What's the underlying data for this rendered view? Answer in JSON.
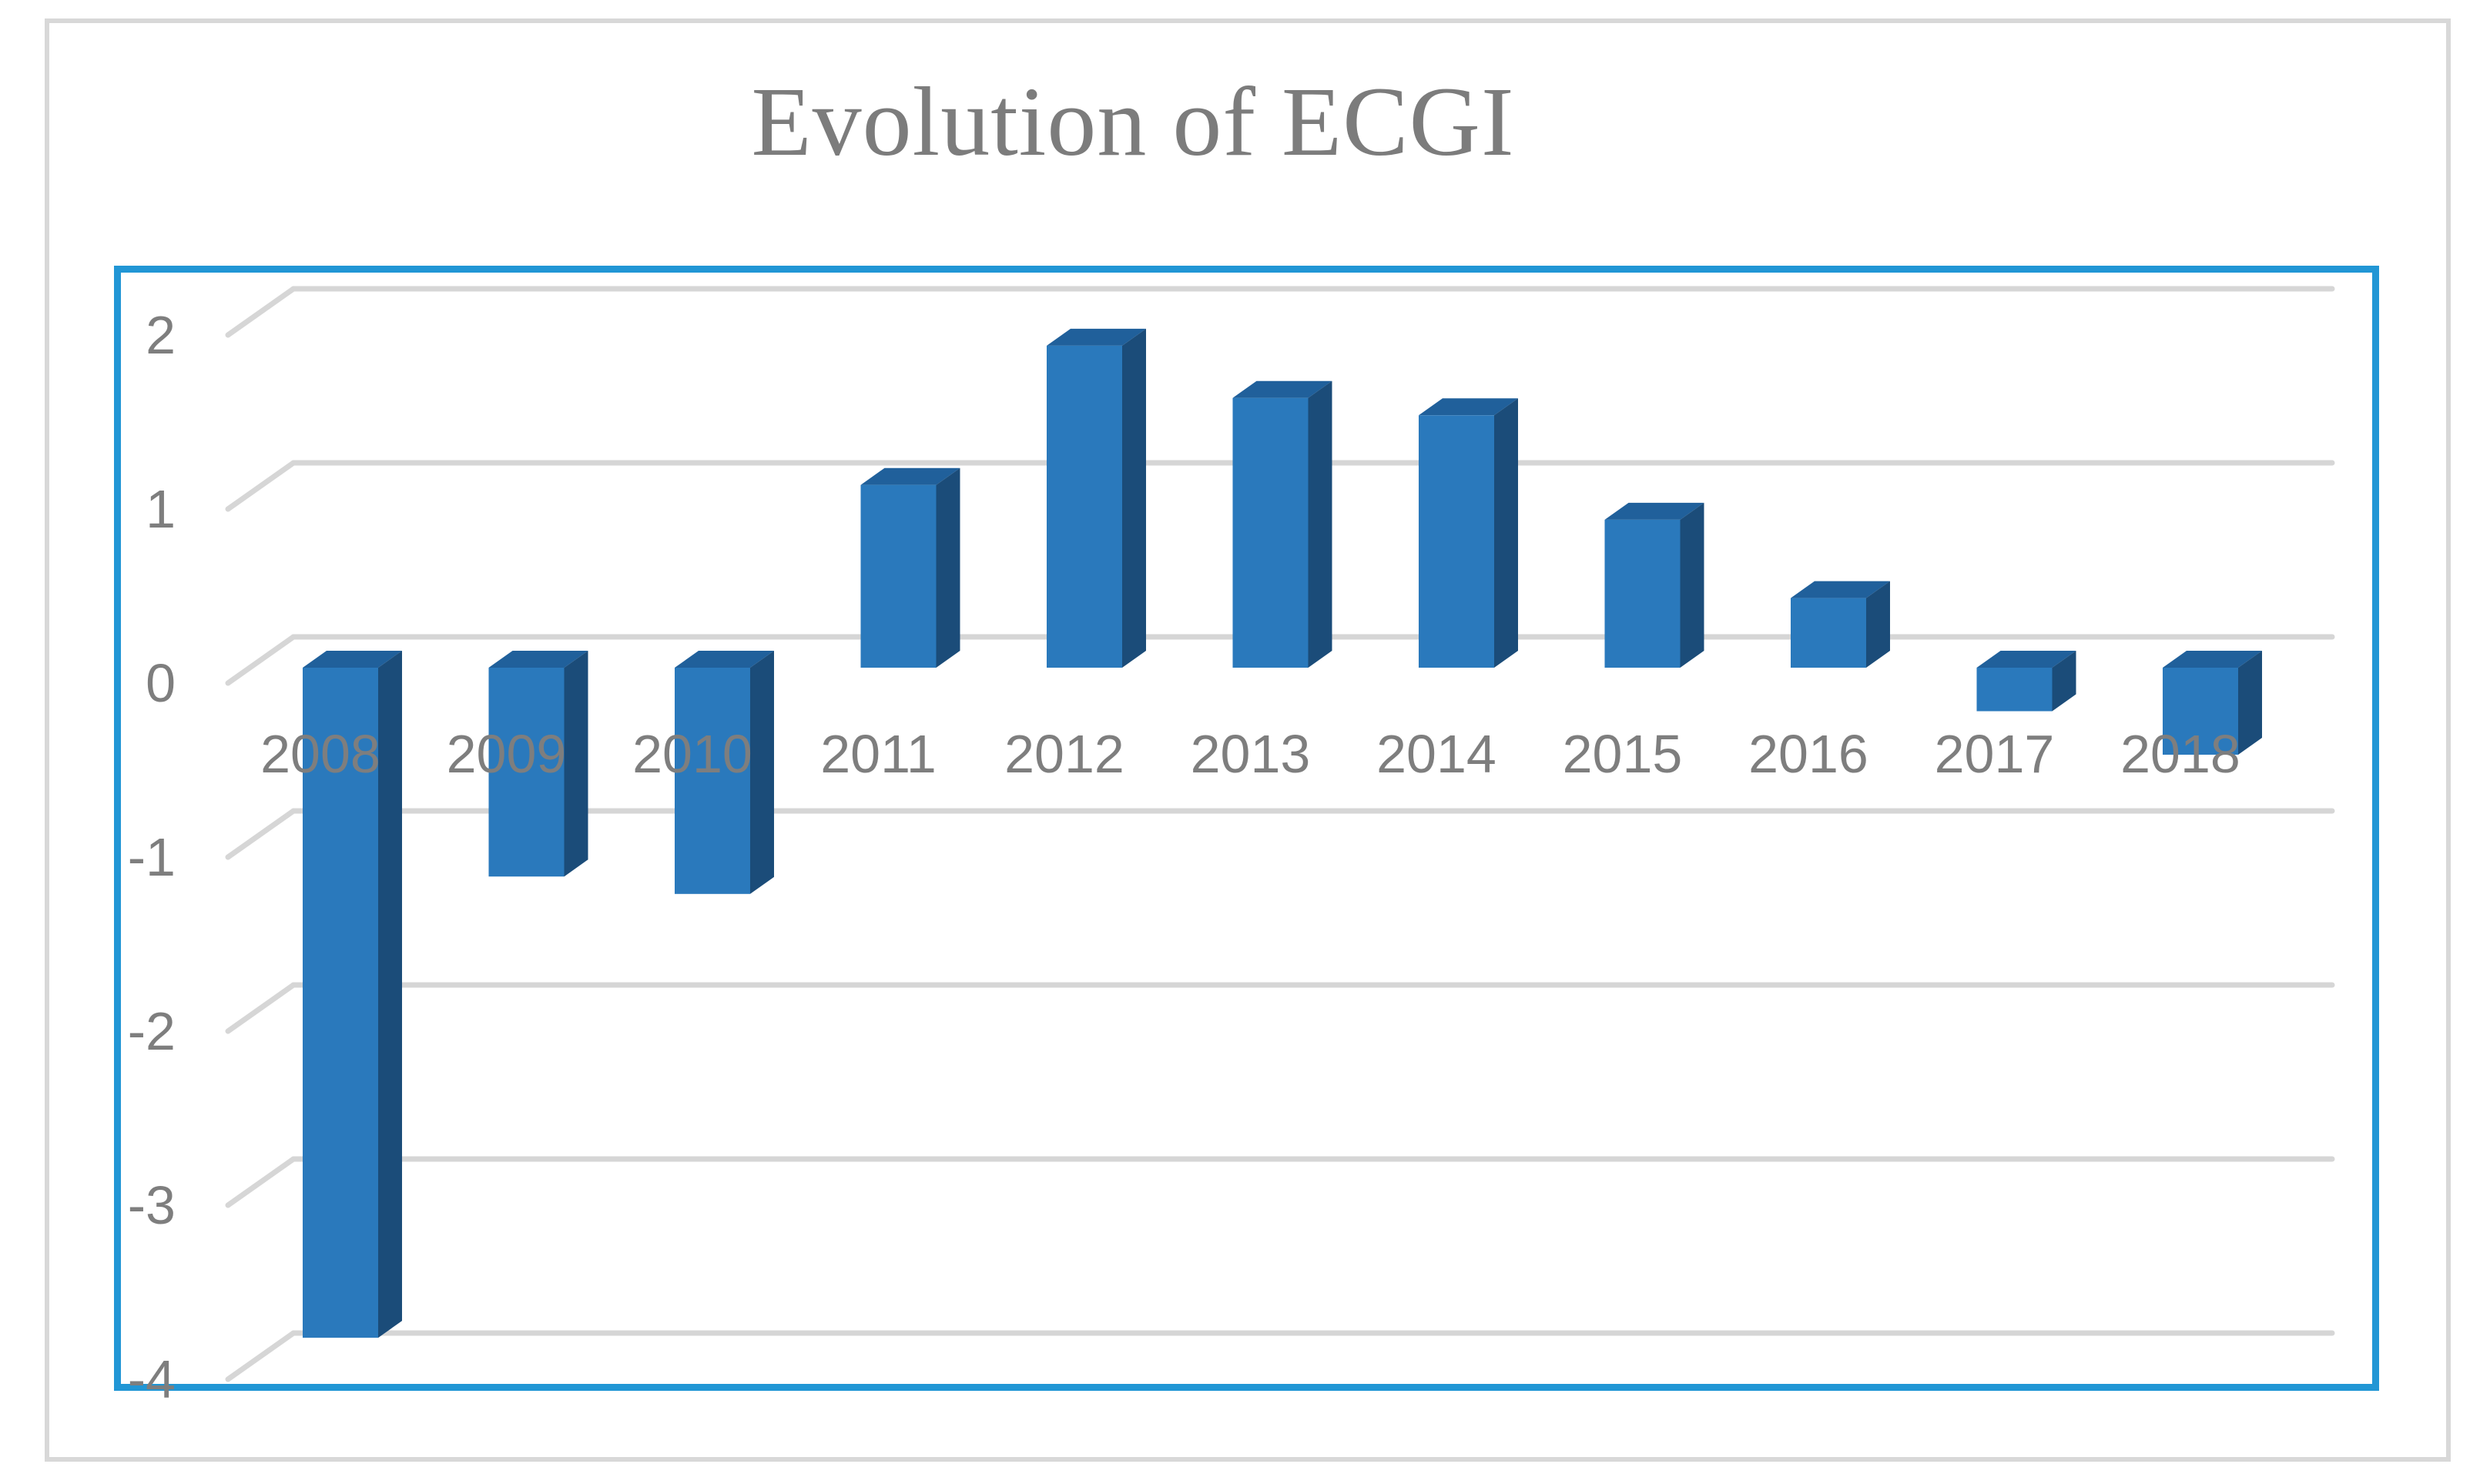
{
  "chart_data": {
    "type": "bar",
    "style": "3d-column",
    "title": "Evolution of ECGI",
    "categories": [
      "2008",
      "2009",
      "2010",
      "2011",
      "2012",
      "2013",
      "2014",
      "2015",
      "2016",
      "2017",
      "2018"
    ],
    "values": [
      -3.85,
      -1.2,
      -1.3,
      1.05,
      1.85,
      1.55,
      1.45,
      0.85,
      0.4,
      -0.25,
      -0.5
    ],
    "series_name": "ECGI",
    "xlabel": "",
    "ylabel": "",
    "y_ticks": [
      2,
      1,
      0,
      -1,
      -2,
      -3,
      -4
    ],
    "ylim": [
      -4,
      2
    ],
    "grid": true,
    "legend": "none",
    "colors": {
      "bar_front": "#2A79BC",
      "bar_top": "#20609B",
      "bar_side": "#1B4C79",
      "gridline": "#D6D6D6",
      "plot_border": "#2196D5",
      "figure_frame": "#D8D8D8",
      "title_text": "#7C7C7C",
      "axis_text": "#7E7E7E",
      "background": "#FFFFFF"
    }
  }
}
